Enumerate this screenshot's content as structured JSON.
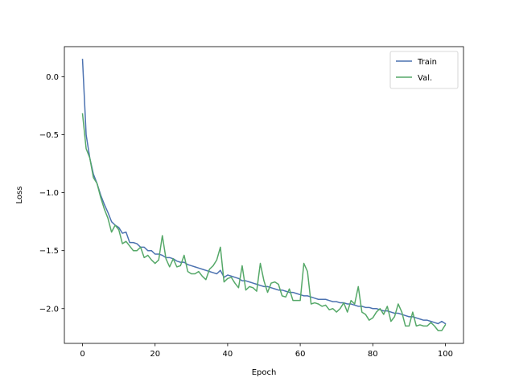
{
  "chart_data": {
    "type": "line",
    "title": "",
    "xlabel": "Epoch",
    "ylabel": "Loss",
    "xlim": [
      -5,
      105
    ],
    "ylim": [
      -2.3,
      0.26
    ],
    "xticks": [
      0,
      20,
      40,
      60,
      80,
      100
    ],
    "xtick_labels": [
      "0",
      "20",
      "40",
      "60",
      "80",
      "100"
    ],
    "yticks": [
      0.0,
      -0.5,
      -1.0,
      -1.5,
      -2.0
    ],
    "ytick_labels": [
      "0.0",
      "−0.5",
      "−1.0",
      "−1.5",
      "−2.0"
    ],
    "grid": false,
    "legend": "top-right",
    "x": [
      0,
      1,
      2,
      3,
      4,
      5,
      6,
      7,
      8,
      9,
      10,
      11,
      12,
      13,
      14,
      15,
      16,
      17,
      18,
      19,
      20,
      21,
      22,
      23,
      24,
      25,
      26,
      27,
      28,
      29,
      30,
      31,
      32,
      33,
      34,
      35,
      36,
      37,
      38,
      39,
      40,
      41,
      42,
      43,
      44,
      45,
      46,
      47,
      48,
      49,
      50,
      51,
      52,
      53,
      54,
      55,
      56,
      57,
      58,
      59,
      60,
      61,
      62,
      63,
      64,
      65,
      66,
      67,
      68,
      69,
      70,
      71,
      72,
      73,
      74,
      75,
      76,
      77,
      78,
      79,
      80,
      81,
      82,
      83,
      84,
      85,
      86,
      87,
      88,
      89,
      90,
      91,
      92,
      93,
      94,
      95,
      96,
      97,
      98,
      99,
      100
    ],
    "series": [
      {
        "name": "Train",
        "color": "#4c72b0",
        "values": [
          0.15,
          -0.5,
          -0.7,
          -0.84,
          -0.92,
          -1.02,
          -1.1,
          -1.17,
          -1.25,
          -1.28,
          -1.3,
          -1.35,
          -1.34,
          -1.43,
          -1.43,
          -1.44,
          -1.47,
          -1.47,
          -1.5,
          -1.5,
          -1.53,
          -1.53,
          -1.54,
          -1.56,
          -1.56,
          -1.57,
          -1.59,
          -1.6,
          -1.6,
          -1.62,
          -1.63,
          -1.64,
          -1.65,
          -1.66,
          -1.67,
          -1.68,
          -1.69,
          -1.7,
          -1.67,
          -1.73,
          -1.71,
          -1.72,
          -1.73,
          -1.74,
          -1.76,
          -1.76,
          -1.77,
          -1.78,
          -1.79,
          -1.8,
          -1.81,
          -1.81,
          -1.82,
          -1.83,
          -1.84,
          -1.84,
          -1.85,
          -1.86,
          -1.86,
          -1.87,
          -1.88,
          -1.89,
          -1.89,
          -1.9,
          -1.91,
          -1.92,
          -1.92,
          -1.92,
          -1.93,
          -1.94,
          -1.94,
          -1.95,
          -1.95,
          -1.96,
          -1.96,
          -1.97,
          -1.98,
          -1.98,
          -1.99,
          -1.99,
          -2.0,
          -2.0,
          -2.01,
          -2.02,
          -2.02,
          -2.03,
          -2.04,
          -2.04,
          -2.05,
          -2.06,
          -2.07,
          -2.07,
          -2.08,
          -2.09,
          -2.1,
          -2.1,
          -2.11,
          -2.12,
          -2.13,
          -2.11,
          -2.13
        ]
      },
      {
        "name": "Val.",
        "color": "#55a868",
        "values": [
          -0.32,
          -0.62,
          -0.7,
          -0.87,
          -0.92,
          -1.04,
          -1.14,
          -1.22,
          -1.34,
          -1.28,
          -1.32,
          -1.44,
          -1.42,
          -1.46,
          -1.5,
          -1.5,
          -1.47,
          -1.56,
          -1.54,
          -1.58,
          -1.61,
          -1.58,
          -1.37,
          -1.57,
          -1.64,
          -1.57,
          -1.64,
          -1.63,
          -1.54,
          -1.68,
          -1.7,
          -1.7,
          -1.68,
          -1.72,
          -1.75,
          -1.66,
          -1.63,
          -1.58,
          -1.47,
          -1.77,
          -1.74,
          -1.73,
          -1.78,
          -1.82,
          -1.63,
          -1.84,
          -1.81,
          -1.82,
          -1.85,
          -1.61,
          -1.76,
          -1.86,
          -1.78,
          -1.77,
          -1.79,
          -1.89,
          -1.9,
          -1.83,
          -1.93,
          -1.93,
          -1.93,
          -1.61,
          -1.68,
          -1.96,
          -1.95,
          -1.96,
          -1.98,
          -1.97,
          -2.01,
          -2.0,
          -2.03,
          -2.0,
          -1.95,
          -2.03,
          -1.93,
          -1.96,
          -1.81,
          -2.03,
          -2.05,
          -2.1,
          -2.08,
          -2.03,
          -2.0,
          -2.05,
          -1.98,
          -2.11,
          -2.07,
          -1.96,
          -2.03,
          -2.15,
          -2.15,
          -2.03,
          -2.15,
          -2.14,
          -2.15,
          -2.15,
          -2.12,
          -2.15,
          -2.19,
          -2.19,
          -2.14
        ]
      }
    ]
  }
}
